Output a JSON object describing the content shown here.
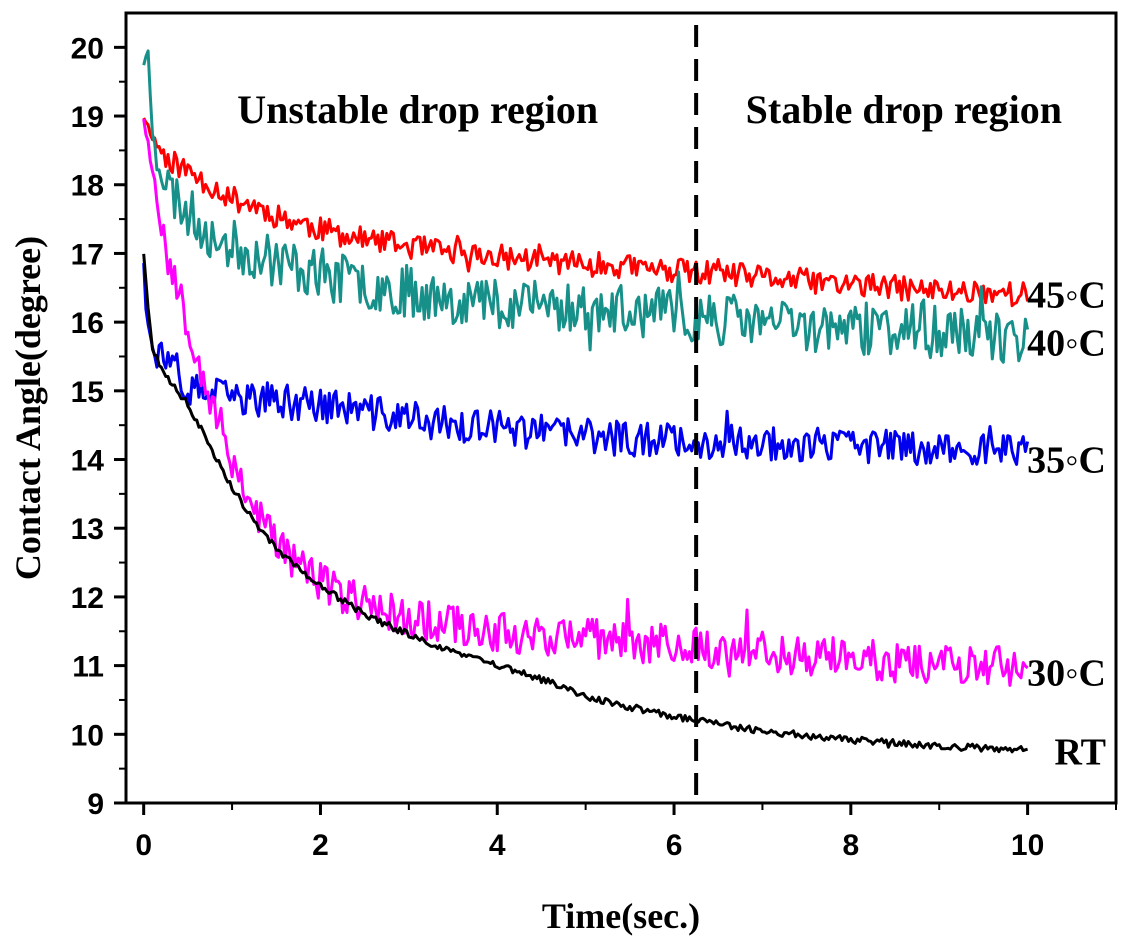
{
  "chart_data": {
    "type": "line",
    "xlabel": "Time(sec.)",
    "ylabel": "Contact Angle(degree)",
    "xlim": [
      -0.2,
      11
    ],
    "ylim": [
      9,
      20.5
    ],
    "xticks": [
      0,
      2,
      4,
      6,
      8,
      10
    ],
    "yticks": [
      9,
      10,
      11,
      12,
      13,
      14,
      15,
      16,
      17,
      18,
      19,
      20
    ],
    "grid": false,
    "divider_x": 6.25,
    "annotations": [
      {
        "text": "Unstable drop region",
        "x": 3.1,
        "y": 18.9
      },
      {
        "text": "Stable drop region",
        "x": 8.6,
        "y": 18.9
      }
    ],
    "series": [
      {
        "name": "45◦C",
        "color": "#ff0000",
        "label_y": 16.4,
        "x": [
          0,
          0.1,
          0.25,
          0.5,
          0.75,
          1,
          1.25,
          1.5,
          1.75,
          2,
          2.5,
          3,
          3.5,
          4,
          4.5,
          5,
          5.5,
          6,
          6.5,
          7,
          7.5,
          8,
          8.5,
          9,
          9.5,
          10
        ],
        "values": [
          19.0,
          18.7,
          18.4,
          18.2,
          18.0,
          17.8,
          17.7,
          17.55,
          17.45,
          17.35,
          17.2,
          17.1,
          17.0,
          16.95,
          16.9,
          16.85,
          16.8,
          16.75,
          16.7,
          16.65,
          16.6,
          16.55,
          16.5,
          16.45,
          16.45,
          16.4
        ],
        "noise": 0.18,
        "seed": 11
      },
      {
        "name": "40◦C",
        "color": "#17908a",
        "label_y": 15.7,
        "x": [
          0,
          0.05,
          0.1,
          0.25,
          0.5,
          0.75,
          1,
          1.25,
          1.5,
          1.75,
          2,
          2.5,
          3,
          3.5,
          4,
          4.5,
          5,
          5.5,
          6,
          6.5,
          7,
          7.5,
          8,
          8.5,
          9,
          9.5,
          10
        ],
        "values": [
          19.8,
          19.9,
          18.8,
          18.0,
          17.6,
          17.3,
          17.1,
          17.0,
          16.9,
          16.8,
          16.7,
          16.55,
          16.45,
          16.35,
          16.3,
          16.25,
          16.2,
          16.15,
          16.1,
          16.05,
          16.0,
          15.95,
          15.9,
          15.9,
          15.85,
          15.8,
          15.75
        ],
        "noise": 0.38,
        "seed": 23
      },
      {
        "name": "35◦C",
        "color": "#0000ee",
        "label_y": 14.0,
        "x": [
          0,
          0.05,
          0.1,
          0.2,
          0.35,
          0.5,
          0.75,
          1,
          1.5,
          2,
          2.5,
          3,
          3.5,
          4,
          4.5,
          5,
          5.5,
          6,
          6.5,
          7,
          7.5,
          8,
          8.5,
          9,
          9.5,
          10
        ],
        "values": [
          16.9,
          16.0,
          15.6,
          15.5,
          15.2,
          15.0,
          14.95,
          14.9,
          14.85,
          14.8,
          14.7,
          14.6,
          14.5,
          14.45,
          14.4,
          14.35,
          14.3,
          14.3,
          14.25,
          14.25,
          14.2,
          14.2,
          14.2,
          14.15,
          14.15,
          14.15
        ],
        "noise": 0.26,
        "seed": 37
      },
      {
        "name": "30◦C",
        "color": "#ff00ff",
        "label_y": 10.9,
        "x": [
          0,
          0.1,
          0.2,
          0.3,
          0.5,
          0.75,
          1,
          1.25,
          1.5,
          2,
          2.5,
          3,
          3.5,
          4,
          4.5,
          5,
          5.5,
          6,
          6.5,
          7,
          7.5,
          8,
          8.5,
          9,
          9.5,
          10
        ],
        "values": [
          19.0,
          18.2,
          17.5,
          16.8,
          16.0,
          14.9,
          14.0,
          13.3,
          12.8,
          12.2,
          11.9,
          11.7,
          11.6,
          11.5,
          11.45,
          11.4,
          11.35,
          11.3,
          11.25,
          11.2,
          11.15,
          11.1,
          11.05,
          11.05,
          11.0,
          10.95
        ],
        "noise": 0.3,
        "seed": 53
      },
      {
        "name": "RT",
        "color": "#000000",
        "label_y": 9.75,
        "x": [
          0,
          0.05,
          0.1,
          0.25,
          0.5,
          0.75,
          1,
          1.25,
          1.5,
          2,
          2.5,
          3,
          3.5,
          4,
          4.5,
          5,
          5.5,
          6,
          6.5,
          7,
          7.5,
          8,
          8.5,
          9,
          9.5,
          10
        ],
        "values": [
          17.0,
          16.2,
          15.6,
          15.2,
          14.8,
          14.2,
          13.6,
          13.1,
          12.7,
          12.15,
          11.75,
          11.45,
          11.2,
          11.0,
          10.8,
          10.55,
          10.4,
          10.25,
          10.15,
          10.05,
          9.98,
          9.92,
          9.87,
          9.83,
          9.8,
          9.78
        ],
        "noise": 0.05,
        "seed": 71
      }
    ]
  }
}
